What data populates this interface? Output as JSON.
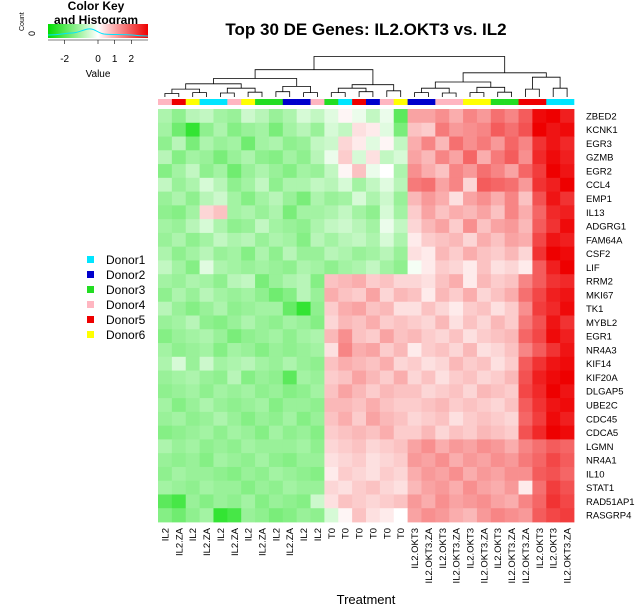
{
  "chart_data": {
    "type": "heatmap",
    "title": "Top 30 DE Genes: IL2.OKT3 vs. IL2",
    "xlabel": "Treatment",
    "rows": [
      "ZBED2",
      "KCNK1",
      "EGR3",
      "GZMB",
      "EGR2",
      "CCL4",
      "EMP1",
      "IL13",
      "ADGRG1",
      "FAM64A",
      "CSF2",
      "LIF",
      "RRM2",
      "MKI67",
      "TK1",
      "MYBL2",
      "EGR1",
      "NR4A3",
      "KIF14",
      "KIF20A",
      "DLGAP5",
      "UBE2C",
      "CDC45",
      "CDCA5",
      "LGMN",
      "NR4A1",
      "IL10",
      "STAT1",
      "RAD51AP1",
      "RASGRP4"
    ],
    "columns": [
      "IL2",
      "IL2.ZA",
      "IL2",
      "IL2.ZA",
      "IL2",
      "IL2.ZA",
      "IL2",
      "IL2.ZA",
      "IL2",
      "IL2.ZA",
      "IL2",
      "IL2",
      "T0",
      "T0",
      "T0",
      "T0",
      "T0",
      "T0",
      "IL2.OKT3",
      "IL2.OKT3.ZA",
      "IL2.OKT3",
      "IL2.OKT3.ZA",
      "IL2.OKT3",
      "IL2.OKT3.ZA",
      "IL2.OKT3",
      "IL2.OKT3.ZA",
      "IL2.OKT3.ZA",
      "IL2.OKT3",
      "IL2.OKT3",
      "IL2.OKT3.ZA"
    ],
    "column_donors": [
      "Donor4",
      "Donor5",
      "Donor6",
      "Donor1",
      "Donor1",
      "Donor4",
      "Donor6",
      "Donor3",
      "Donor3",
      "Donor2",
      "Donor2",
      "Donor4",
      "Donor3",
      "Donor1",
      "Donor5",
      "Donor2",
      "Donor4",
      "Donor6",
      "Donor2",
      "Donor2",
      "Donor4",
      "Donor4",
      "Donor6",
      "Donor6",
      "Donor3",
      "Donor3",
      "Donor5",
      "Donor5",
      "Donor1",
      "Donor1"
    ],
    "color_key": {
      "title": "Color Key\nand Histogram",
      "xlabel": "Value",
      "ylabel": "Count",
      "ticks": [
        "-2",
        "0",
        "1",
        "2"
      ],
      "y_tick": "0",
      "low_color": "#00dd00",
      "mid_color": "#ffffff",
      "high_color": "#ee0000"
    },
    "legend": {
      "items": [
        {
          "label": "Donor1",
          "color": "#00e5ff"
        },
        {
          "label": "Donor2",
          "color": "#0000cc"
        },
        {
          "label": "Donor3",
          "color": "#22dd22"
        },
        {
          "label": "Donor4",
          "color": "#ffb6c1"
        },
        {
          "label": "Donor5",
          "color": "#ee0000"
        },
        {
          "label": "Donor6",
          "color": "#ffff00"
        }
      ]
    },
    "values": [
      [
        -0.8,
        -1.1,
        -0.7,
        -0.6,
        -0.9,
        -1.0,
        -0.5,
        -0.7,
        -1.0,
        -0.8,
        -0.4,
        -0.6,
        -0.3,
        0.1,
        -0.2,
        -0.6,
        -0.2,
        -1.6,
        0.9,
        0.9,
        1.1,
        0.8,
        1.2,
        1.0,
        1.4,
        1.2,
        1.6,
        2.4,
        2.5,
        2.2
      ],
      [
        -0.9,
        -1.4,
        -2.0,
        -1.1,
        -0.8,
        -1.2,
        -1.0,
        -0.9,
        -1.3,
        -0.9,
        -0.7,
        -1.0,
        -0.4,
        -0.6,
        0.3,
        0.2,
        -0.3,
        -1.3,
        0.6,
        0.5,
        1.3,
        1.0,
        1.1,
        1.2,
        1.6,
        1.4,
        1.7,
        2.5,
        2.3,
        2.4
      ],
      [
        -1.1,
        -0.7,
        -1.3,
        -0.8,
        -1.0,
        -0.9,
        -1.4,
        -0.9,
        -0.8,
        -1.1,
        -1.0,
        -0.6,
        -0.5,
        0.4,
        0.2,
        -0.3,
        0.1,
        -0.6,
        0.8,
        1.2,
        0.7,
        1.4,
        1.1,
        1.3,
        1.0,
        1.5,
        1.2,
        2.0,
        2.3,
        2.1
      ],
      [
        -0.7,
        -1.2,
        -0.9,
        -1.0,
        -1.3,
        -1.0,
        -0.8,
        -1.1,
        -1.2,
        -0.9,
        -1.1,
        -0.7,
        -0.2,
        0.5,
        -0.4,
        0.3,
        -0.6,
        -0.4,
        0.9,
        0.7,
        1.2,
        0.9,
        1.5,
        0.8,
        1.3,
        1.6,
        1.1,
        2.1,
        2.4,
        2.2
      ],
      [
        -1.2,
        -0.9,
        -0.6,
        -1.1,
        -0.9,
        -1.4,
        -1.0,
        -0.8,
        -1.0,
        -1.2,
        -0.9,
        -1.0,
        -0.6,
        0.1,
        0.6,
        -0.2,
        0.0,
        -0.8,
        1.1,
        0.8,
        0.6,
        1.2,
        1.0,
        1.4,
        1.2,
        0.9,
        1.5,
        1.9,
        2.5,
        2.3
      ],
      [
        -0.6,
        -1.0,
        -0.8,
        -0.4,
        -0.7,
        -1.1,
        -0.9,
        -0.6,
        -1.1,
        -0.8,
        -0.8,
        -0.6,
        -0.7,
        -0.4,
        -0.9,
        -0.6,
        -0.3,
        -0.7,
        1.3,
        1.4,
        0.9,
        1.2,
        0.4,
        1.6,
        1.5,
        1.4,
        1.0,
        2.0,
        2.2,
        2.5
      ],
      [
        -1.0,
        -0.8,
        -1.1,
        -0.7,
        -0.5,
        -0.9,
        -1.2,
        -0.9,
        -0.7,
        -1.0,
        -1.3,
        -0.8,
        -1.0,
        -0.9,
        -0.4,
        -0.8,
        -0.5,
        -1.0,
        0.7,
        1.0,
        0.8,
        0.3,
        0.9,
        1.1,
        0.8,
        1.2,
        0.6,
        1.7,
        2.3,
        2.0
      ],
      [
        -1.1,
        -1.2,
        -0.9,
        0.4,
        0.6,
        -0.9,
        -0.8,
        -1.0,
        -0.8,
        -1.3,
        -0.9,
        -0.9,
        -0.8,
        -0.6,
        -0.9,
        -1.1,
        -0.4,
        -0.9,
        0.5,
        0.9,
        0.6,
        0.8,
        0.7,
        0.9,
        0.6,
        1.2,
        0.8,
        1.5,
        2.1,
        2.2
      ],
      [
        -0.9,
        -1.0,
        -0.7,
        -0.4,
        -0.8,
        -1.1,
        -1.0,
        -0.6,
        -0.9,
        -1.0,
        -1.1,
        -0.8,
        -0.6,
        -0.5,
        -0.7,
        -0.9,
        -0.2,
        -0.6,
        0.4,
        0.7,
        0.9,
        0.5,
        1.1,
        0.6,
        0.9,
        1.0,
        0.7,
        1.6,
        2.0,
        2.4
      ],
      [
        -1.0,
        -0.8,
        -1.1,
        -0.9,
        -0.6,
        -0.8,
        -0.7,
        -1.0,
        -0.8,
        -0.9,
        -1.2,
        -0.7,
        -0.9,
        -0.7,
        -0.6,
        -0.8,
        -0.4,
        -0.8,
        0.2,
        0.5,
        0.6,
        0.7,
        0.4,
        0.8,
        0.6,
        0.9,
        0.8,
        1.8,
        2.3,
        2.2
      ],
      [
        -0.8,
        -1.1,
        -0.9,
        -0.7,
        -1.0,
        -0.9,
        -1.2,
        -0.8,
        -1.1,
        -0.7,
        -1.0,
        -1.0,
        -0.7,
        -0.8,
        -1.0,
        -0.9,
        -0.7,
        -1.0,
        0.3,
        0.2,
        0.7,
        0.5,
        0.8,
        0.6,
        0.5,
        0.7,
        0.4,
        2.0,
        2.5,
        2.4
      ],
      [
        -0.6,
        -0.9,
        -1.2,
        -0.3,
        -0.8,
        -0.9,
        -1.0,
        -0.9,
        -1.0,
        -1.1,
        -0.8,
        -0.9,
        -1.1,
        -0.9,
        -0.8,
        -0.6,
        -0.9,
        -1.1,
        -0.1,
        0.2,
        0.5,
        0.4,
        0.2,
        0.6,
        0.3,
        0.4,
        0.2,
        1.6,
        2.2,
        2.5
      ],
      [
        -0.9,
        -1.0,
        -0.8,
        -0.9,
        -1.1,
        -0.7,
        -0.6,
        -1.3,
        -1.0,
        -0.8,
        -0.7,
        -1.2,
        0.6,
        0.7,
        0.8,
        0.5,
        0.6,
        0.4,
        0.4,
        0.3,
        0.6,
        0.8,
        0.2,
        0.7,
        0.5,
        0.6,
        1.2,
        1.6,
        2.0,
        2.1
      ],
      [
        -1.1,
        -0.8,
        -1.0,
        -0.7,
        -0.9,
        -1.0,
        -0.9,
        -1.1,
        -1.4,
        -1.2,
        -0.7,
        -1.0,
        0.8,
        0.6,
        0.5,
        0.9,
        0.4,
        0.7,
        0.6,
        0.2,
        0.7,
        0.5,
        0.8,
        0.4,
        0.6,
        0.8,
        1.4,
        1.8,
        2.2,
        2.3
      ],
      [
        -0.7,
        -1.0,
        -1.2,
        -1.0,
        -0.8,
        -1.1,
        -1.0,
        -0.9,
        -0.9,
        -1.5,
        -2.0,
        -1.1,
        0.5,
        0.8,
        0.9,
        0.6,
        0.7,
        0.3,
        0.3,
        0.6,
        0.4,
        0.2,
        0.5,
        0.6,
        0.3,
        0.5,
        1.1,
        1.9,
        2.1,
        2.4
      ],
      [
        -1.0,
        -0.9,
        -0.7,
        -1.1,
        -1.2,
        -1.0,
        -0.8,
        -1.0,
        -1.1,
        -0.9,
        -1.0,
        -1.2,
        0.4,
        0.7,
        0.6,
        0.8,
        0.5,
        0.6,
        0.5,
        0.4,
        0.7,
        0.3,
        0.6,
        0.4,
        0.7,
        0.5,
        1.3,
        1.7,
        2.3,
        2.0
      ],
      [
        -1.2,
        -1.0,
        -0.9,
        -0.8,
        -1.0,
        -1.3,
        -1.1,
        -1.0,
        -0.9,
        -1.1,
        -0.9,
        -0.8,
        0.7,
        1.1,
        0.6,
        0.5,
        0.9,
        0.6,
        0.7,
        0.5,
        0.4,
        0.6,
        0.3,
        0.5,
        0.6,
        0.7,
        1.5,
        1.8,
        2.4,
        2.2
      ],
      [
        -0.9,
        -1.1,
        -1.0,
        -0.9,
        -1.2,
        -0.9,
        -1.0,
        -1.2,
        -1.0,
        -1.1,
        -1.0,
        -0.9,
        0.3,
        1.2,
        0.8,
        0.9,
        0.5,
        0.7,
        0.2,
        0.5,
        0.6,
        0.4,
        0.7,
        0.3,
        0.4,
        0.6,
        1.2,
        1.6,
        2.0,
        2.3
      ],
      [
        -0.8,
        -0.4,
        -1.0,
        -0.5,
        -0.9,
        -0.8,
        -0.7,
        -0.9,
        -1.0,
        -0.8,
        -1.0,
        -1.1,
        0.6,
        0.8,
        0.7,
        0.6,
        0.8,
        0.4,
        0.5,
        0.3,
        0.4,
        0.7,
        0.5,
        0.6,
        0.3,
        0.5,
        1.6,
        2.0,
        2.3,
        2.4
      ],
      [
        -1.0,
        -0.9,
        -0.8,
        -1.0,
        -1.1,
        -0.7,
        -1.2,
        -1.0,
        -1.1,
        -1.6,
        -0.9,
        -1.0,
        0.5,
        0.6,
        0.9,
        0.7,
        0.5,
        0.8,
        0.4,
        0.6,
        0.3,
        0.5,
        0.6,
        0.4,
        0.5,
        0.7,
        1.7,
        2.2,
        2.4,
        2.5
      ],
      [
        -1.1,
        -1.0,
        -0.9,
        -1.1,
        -0.9,
        -1.0,
        -0.9,
        -1.1,
        -1.0,
        -1.2,
        -1.1,
        -0.9,
        0.6,
        0.9,
        0.7,
        0.5,
        0.7,
        0.6,
        0.6,
        0.4,
        0.5,
        0.6,
        0.4,
        0.7,
        0.6,
        0.5,
        1.8,
        2.1,
        2.5,
        2.3
      ],
      [
        -0.9,
        -1.2,
        -1.0,
        -0.8,
        -1.0,
        -1.1,
        -1.0,
        -0.9,
        -1.2,
        -1.0,
        -1.0,
        -1.1,
        0.7,
        0.7,
        0.6,
        0.8,
        0.6,
        0.5,
        0.5,
        0.6,
        0.7,
        0.5,
        0.6,
        0.5,
        0.4,
        0.6,
        1.6,
        2.0,
        2.3,
        2.4
      ],
      [
        -1.0,
        -0.9,
        -1.1,
        -1.0,
        -0.8,
        -1.0,
        -1.2,
        -1.0,
        -1.1,
        -0.9,
        -1.2,
        -1.0,
        0.6,
        0.8,
        0.5,
        0.9,
        0.7,
        0.6,
        0.4,
        0.5,
        0.6,
        0.3,
        0.5,
        0.6,
        0.5,
        0.4,
        1.5,
        1.9,
        2.4,
        2.2
      ],
      [
        -1.2,
        -1.1,
        -1.0,
        -0.9,
        -1.1,
        -0.9,
        -1.0,
        -1.2,
        -0.9,
        -1.1,
        -1.0,
        -1.2,
        0.5,
        0.6,
        0.7,
        0.6,
        0.8,
        0.5,
        0.5,
        0.7,
        0.4,
        0.6,
        0.5,
        0.7,
        0.6,
        0.5,
        1.7,
        2.1,
        2.5,
        2.4
      ],
      [
        -0.8,
        -1.0,
        -0.9,
        -1.1,
        -1.0,
        -1.1,
        -0.9,
        -1.0,
        -1.0,
        -1.0,
        -0.9,
        -1.1,
        0.4,
        0.5,
        0.6,
        0.4,
        0.5,
        0.6,
        0.9,
        1.1,
        0.8,
        1.0,
        0.9,
        1.1,
        1.0,
        0.8,
        1.2,
        1.4,
        1.6,
        1.5
      ],
      [
        -1.0,
        -1.1,
        -1.0,
        -1.2,
        -0.9,
        -1.0,
        -1.1,
        -0.9,
        -1.1,
        -1.2,
        -1.0,
        -1.0,
        0.3,
        0.4,
        0.5,
        0.3,
        0.4,
        0.5,
        1.0,
        0.9,
        1.1,
        0.8,
        1.0,
        0.9,
        1.1,
        1.0,
        1.3,
        1.5,
        1.8,
        1.6
      ],
      [
        -1.1,
        -0.9,
        -1.0,
        -1.0,
        -1.1,
        -1.2,
        -1.0,
        -1.1,
        -0.9,
        -1.0,
        -1.1,
        -1.2,
        0.2,
        0.5,
        0.4,
        0.3,
        0.5,
        0.4,
        0.8,
        1.0,
        0.9,
        1.1,
        0.8,
        1.0,
        0.9,
        1.1,
        1.1,
        1.6,
        1.7,
        1.5
      ],
      [
        -0.9,
        -1.0,
        -1.1,
        -0.9,
        -1.0,
        -1.0,
        -1.2,
        -1.0,
        -1.1,
        -0.9,
        -1.0,
        -1.0,
        0.4,
        0.3,
        0.5,
        0.6,
        0.4,
        0.3,
        0.7,
        0.9,
        1.0,
        0.8,
        1.1,
        0.9,
        0.8,
        1.0,
        0.2,
        1.4,
        1.9,
        1.7
      ],
      [
        -1.6,
        -1.8,
        -1.0,
        -1.2,
        -1.0,
        -1.1,
        -0.9,
        -1.2,
        -1.0,
        -1.1,
        -1.2,
        -0.5,
        0.3,
        0.6,
        0.5,
        0.4,
        0.5,
        0.6,
        1.0,
        0.8,
        1.1,
        0.9,
        1.0,
        1.1,
        0.9,
        0.8,
        1.2,
        1.5,
        2.0,
        1.8
      ],
      [
        -1.2,
        -1.4,
        -1.1,
        -0.9,
        -2.0,
        -1.8,
        -1.0,
        -1.1,
        -1.3,
        -1.2,
        -1.0,
        -1.1,
        -0.4,
        0.1,
        0.6,
        0.3,
        0.2,
        0.0,
        0.9,
        1.1,
        1.0,
        0.8,
        0.7,
        1.0,
        1.2,
        1.1,
        1.0,
        1.6,
        1.8,
        1.9
      ]
    ]
  }
}
